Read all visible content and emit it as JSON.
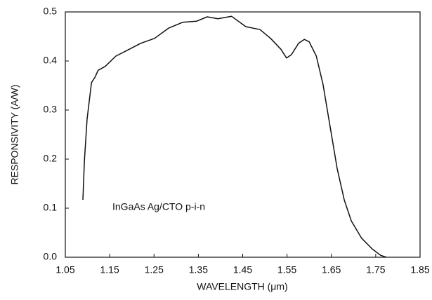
{
  "chart_data": {
    "type": "line",
    "x_label": "WAVELENGTH (μm)",
    "y_label": "RESPONSIVITY (A/W)",
    "annotation": "InGaAs Ag/CTO p-i-n",
    "xlim": [
      1.05,
      1.85
    ],
    "xticks": [
      1.05,
      1.15,
      1.25,
      1.35,
      1.45,
      1.55,
      1.65,
      1.75,
      1.85
    ],
    "ylim": [
      0,
      0.5
    ],
    "yticks": [
      {
        "value": 0,
        "label": "0.0"
      },
      0.1,
      0.2,
      0.3,
      0.4,
      0.5
    ],
    "grid": false,
    "x": [
      1.0896,
      1.093,
      1.099,
      1.109,
      1.117,
      1.124,
      1.14,
      1.164,
      1.188,
      1.22,
      1.251,
      1.283,
      1.315,
      1.346,
      1.37,
      1.394,
      1.425,
      1.457,
      1.489,
      1.513,
      1.536,
      1.549,
      1.56,
      1.576,
      1.589,
      1.6,
      1.616,
      1.631,
      1.647,
      1.663,
      1.679,
      1.695,
      1.718,
      1.742,
      1.761,
      1.774
    ],
    "series": [
      {
        "color": "#111111",
        "values": [
          0.117,
          0.196,
          0.281,
          0.356,
          0.367,
          0.381,
          0.389,
          0.41,
          0.421,
          0.436,
          0.446,
          0.467,
          0.479,
          0.481,
          0.49,
          0.486,
          0.491,
          0.47,
          0.464,
          0.446,
          0.424,
          0.406,
          0.413,
          0.436,
          0.444,
          0.439,
          0.41,
          0.353,
          0.267,
          0.181,
          0.117,
          0.074,
          0.039,
          0.017,
          0.004,
          0
        ]
      }
    ]
  }
}
